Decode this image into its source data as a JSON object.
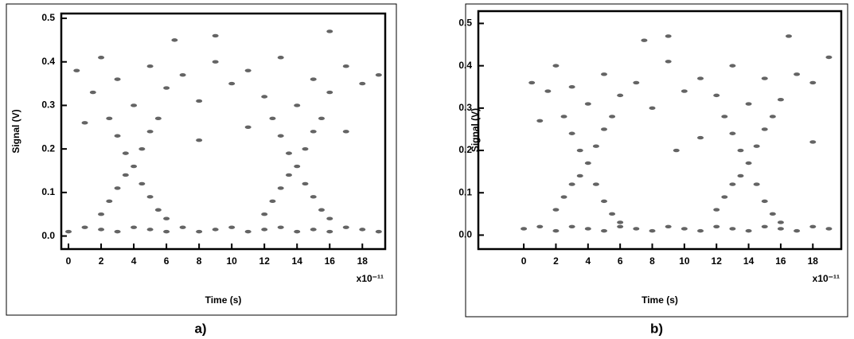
{
  "chart_data": [
    {
      "type": "scatter",
      "caption": "a)",
      "xlabel": "Time (s)",
      "ylabel": "Signal (V)",
      "x_scale_label": "x10⁻¹¹",
      "color": "#222222",
      "xlim": [
        -0.44,
        19.4
      ],
      "ylim": [
        -0.03,
        0.511
      ],
      "xticks": [
        0,
        2,
        4,
        6,
        8,
        10,
        12,
        14,
        16,
        18
      ],
      "yticks": [
        {
          "value": 0,
          "label": "0.0"
        },
        0.1,
        0.2,
        0.3,
        0.4,
        0.5
      ],
      "x": [
        0,
        1,
        2,
        3,
        4,
        5,
        6,
        7,
        8,
        9,
        10,
        11,
        12,
        13,
        14,
        15,
        16,
        17,
        18,
        19,
        2,
        2.5,
        3,
        3.5,
        4,
        4.5,
        5,
        5.5,
        2.5,
        3,
        3.5,
        4.5,
        5,
        5.5,
        6,
        12,
        12.5,
        13,
        13.5,
        14,
        14.5,
        15,
        15.5,
        12.5,
        13,
        13.5,
        14.5,
        15,
        15.5,
        16,
        0.5,
        1.5,
        2,
        3,
        4,
        5,
        6,
        7,
        8,
        9,
        10,
        11,
        12,
        13,
        14,
        15,
        16,
        17,
        18,
        19,
        6.5,
        9,
        16,
        11,
        1,
        8,
        17
      ],
      "y": [
        0.01,
        0.02,
        0.015,
        0.01,
        0.02,
        0.015,
        0.01,
        0.02,
        0.01,
        0.015,
        0.02,
        0.01,
        0.015,
        0.02,
        0.01,
        0.015,
        0.01,
        0.02,
        0.015,
        0.01,
        0.05,
        0.08,
        0.11,
        0.14,
        0.16,
        0.2,
        0.24,
        0.27,
        0.27,
        0.23,
        0.19,
        0.12,
        0.09,
        0.06,
        0.04,
        0.05,
        0.08,
        0.11,
        0.14,
        0.16,
        0.2,
        0.24,
        0.27,
        0.27,
        0.23,
        0.19,
        0.12,
        0.09,
        0.06,
        0.04,
        0.38,
        0.33,
        0.41,
        0.36,
        0.3,
        0.39,
        0.34,
        0.37,
        0.31,
        0.4,
        0.35,
        0.38,
        0.32,
        0.41,
        0.3,
        0.36,
        0.33,
        0.39,
        0.35,
        0.37,
        0.45,
        0.46,
        0.47,
        0.25,
        0.26,
        0.22,
        0.24
      ]
    },
    {
      "type": "scatter",
      "caption": "b)",
      "xlabel": "Time (s)",
      "ylabel": "Signal (V)",
      "x_scale_label": "x10⁻¹¹",
      "color": "#222222",
      "xlim": [
        -2.83,
        19.77
      ],
      "ylim": [
        -0.033,
        0.529
      ],
      "xticks": [
        0,
        2,
        4,
        6,
        8,
        10,
        12,
        14,
        16,
        18
      ],
      "yticks": [
        {
          "value": 0,
          "label": "0.0"
        },
        0.1,
        0.2,
        0.3,
        0.4,
        0.5
      ],
      "x": [
        0,
        1,
        2,
        3,
        4,
        5,
        6,
        7,
        8,
        9,
        10,
        11,
        12,
        13,
        14,
        15,
        16,
        17,
        18,
        19,
        2,
        2.5,
        3,
        3.5,
        4,
        4.5,
        5,
        5.5,
        2.5,
        3,
        3.5,
        4.5,
        5,
        5.5,
        6,
        12,
        12.5,
        13,
        13.5,
        14,
        14.5,
        15,
        15.5,
        12.5,
        13,
        13.5,
        14.5,
        15,
        15.5,
        16,
        0.5,
        1.5,
        2,
        3,
        4,
        5,
        6,
        7,
        8,
        9,
        10,
        11,
        12,
        13,
        14,
        15,
        16,
        17,
        18,
        19,
        7.5,
        9,
        16.5,
        11,
        1,
        9.5,
        18
      ],
      "y": [
        0.015,
        0.02,
        0.01,
        0.02,
        0.015,
        0.01,
        0.02,
        0.015,
        0.01,
        0.02,
        0.015,
        0.01,
        0.02,
        0.015,
        0.01,
        0.02,
        0.015,
        0.01,
        0.02,
        0.015,
        0.06,
        0.09,
        0.12,
        0.14,
        0.17,
        0.21,
        0.25,
        0.28,
        0.28,
        0.24,
        0.2,
        0.12,
        0.08,
        0.05,
        0.03,
        0.06,
        0.09,
        0.12,
        0.14,
        0.17,
        0.21,
        0.25,
        0.28,
        0.28,
        0.24,
        0.2,
        0.12,
        0.08,
        0.05,
        0.03,
        0.36,
        0.34,
        0.4,
        0.35,
        0.31,
        0.38,
        0.33,
        0.36,
        0.3,
        0.41,
        0.34,
        0.37,
        0.33,
        0.4,
        0.31,
        0.37,
        0.32,
        0.38,
        0.36,
        0.42,
        0.46,
        0.47,
        0.47,
        0.23,
        0.27,
        0.2,
        0.22
      ]
    }
  ]
}
